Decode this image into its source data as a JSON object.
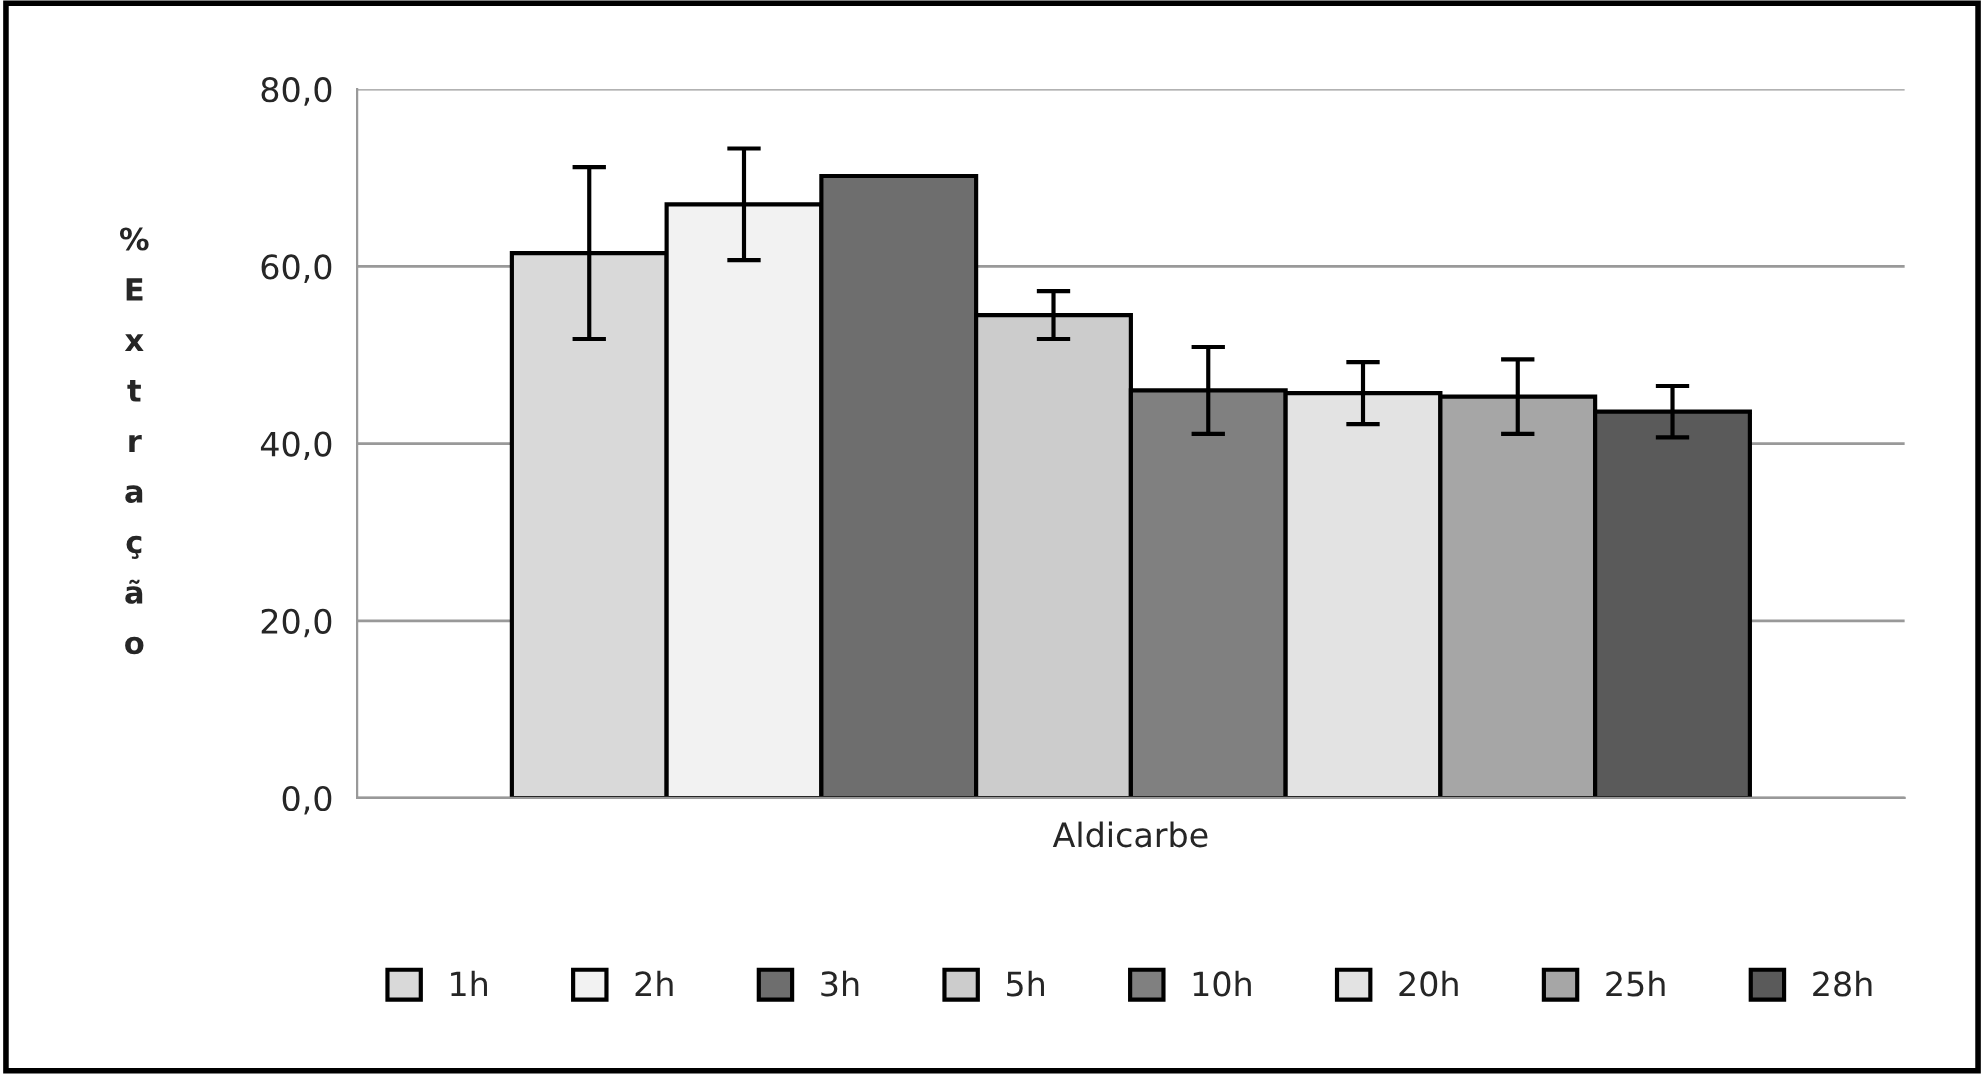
{
  "chart_data": {
    "type": "bar",
    "ylabel": "% Extração",
    "categories": [
      "Aldicarbe"
    ],
    "series": [
      {
        "name": "1h",
        "color": "#d9d9d9",
        "values": [
          61.5
        ],
        "errors": [
          9.7
        ]
      },
      {
        "name": "2h",
        "color": "#f2f2f2",
        "values": [
          67.0
        ],
        "errors": [
          6.3
        ]
      },
      {
        "name": "3h",
        "color": "#6e6e6e",
        "values": [
          70.2
        ],
        "errors": [
          0
        ]
      },
      {
        "name": "5h",
        "color": "#cccccc",
        "values": [
          54.5
        ],
        "errors": [
          2.7
        ]
      },
      {
        "name": "10h",
        "color": "#808080",
        "values": [
          46.0
        ],
        "errors": [
          4.9
        ]
      },
      {
        "name": "20h",
        "color": "#e3e3e3",
        "values": [
          45.7
        ],
        "errors": [
          3.5
        ]
      },
      {
        "name": "25h",
        "color": "#a6a6a6",
        "values": [
          45.3
        ],
        "errors": [
          4.2
        ]
      },
      {
        "name": "28h",
        "color": "#5a5a5a",
        "values": [
          43.6
        ],
        "errors": [
          2.9
        ]
      }
    ],
    "ylim": [
      0,
      80
    ],
    "yticks": [
      {
        "value": 0,
        "label": "0,0"
      },
      {
        "value": 20,
        "label": "20,0"
      },
      {
        "value": 40,
        "label": "40,0"
      },
      {
        "value": 60,
        "label": "60,0"
      },
      {
        "value": 80,
        "label": "80,0"
      }
    ],
    "grid": "y",
    "legend": "bottom"
  }
}
